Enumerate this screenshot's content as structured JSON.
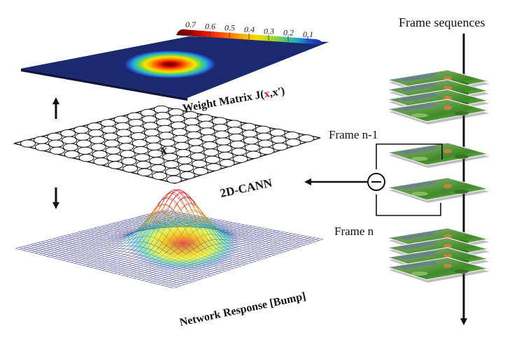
{
  "colorbar": {
    "ticks": [
      "0.7",
      "0.6",
      "0.5",
      "0.4",
      "0.3",
      "0.2",
      "0.1"
    ],
    "colors": [
      "#5a0000",
      "#c00000",
      "#ff3a00",
      "#ff9a00",
      "#f0e000",
      "#7ed04a",
      "#1fb0c8",
      "#1e4bd8",
      "#1a2f8c"
    ]
  },
  "labels": {
    "weight_prefix": "Weight Matrix J(",
    "weight_x": "x",
    "weight_suffix": ",x')",
    "cann": "2D-CANN",
    "cann_marker": "x",
    "response": "Network Response [Bump]",
    "frame_sequences": "Frame sequences",
    "frame_prev": "Frame n-1",
    "frame_cur": "Frame n"
  },
  "colors": {
    "weight_bg": "#1b2a6e",
    "marker": "#d42020",
    "mesh": "#2a2a8a"
  }
}
